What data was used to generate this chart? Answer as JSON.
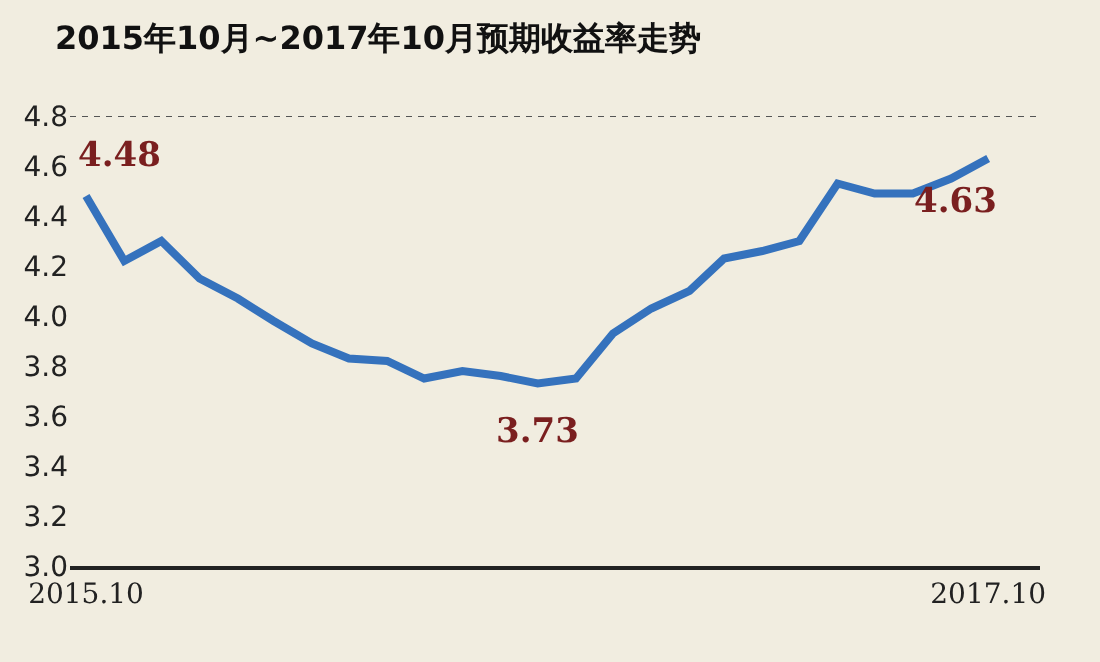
{
  "chart_data": {
    "type": "line",
    "title": "2015年10月~2017年10月预期收益率走势",
    "x": [
      "2015-10",
      "2015-11",
      "2015-12",
      "2016-01",
      "2016-02",
      "2016-03",
      "2016-04",
      "2016-05",
      "2016-06",
      "2016-07",
      "2016-08",
      "2016-09",
      "2016-10",
      "2016-11",
      "2016-12",
      "2017-01",
      "2017-02",
      "2017-03",
      "2017-04",
      "2017-05",
      "2017-06",
      "2017-07",
      "2017-08",
      "2017-09",
      "2017-10"
    ],
    "series": [
      {
        "color": "#3572bd",
        "values": [
          4.48,
          4.22,
          4.3,
          4.15,
          4.07,
          3.98,
          3.89,
          3.83,
          3.82,
          3.75,
          3.78,
          3.76,
          3.73,
          3.75,
          3.93,
          4.03,
          4.1,
          4.23,
          4.26,
          4.3,
          4.53,
          4.49,
          4.49,
          4.55,
          4.63
        ]
      }
    ],
    "annotations": [
      {
        "text": "4.48",
        "x": "2015-10",
        "y": 4.48
      },
      {
        "text": "3.73",
        "x": "2016-10",
        "y": 3.73
      },
      {
        "text": "4.63",
        "x": "2017-10",
        "y": 4.63
      }
    ],
    "xlim": [
      "2015-09-18",
      "2017-11-12"
    ],
    "xticks": [
      {
        "value": "2015-10",
        "label": "2015.10"
      },
      {
        "value": "2017-10",
        "label": "2017.10"
      }
    ],
    "ylim": [
      3.0,
      4.8
    ],
    "yticks": [
      {
        "value": 3.0,
        "label": "3.0"
      },
      {
        "value": 3.2,
        "label": "3.2"
      },
      {
        "value": 3.4,
        "label": "3.4"
      },
      {
        "value": 3.6,
        "label": "3.6"
      },
      {
        "value": 3.8,
        "label": "3.8"
      },
      {
        "value": 4.0,
        "label": "4.0"
      },
      {
        "value": 4.2,
        "label": "4.2"
      },
      {
        "value": 4.4,
        "label": "4.4"
      },
      {
        "value": 4.6,
        "label": "4.6"
      },
      {
        "value": 4.8,
        "label": "4.8"
      }
    ],
    "ref_lines": [
      {
        "axis": "y",
        "value": 4.8,
        "label": null,
        "color": "#555555",
        "line_style": "dotted"
      }
    ],
    "grid": false,
    "legend": false,
    "marker": "none",
    "line_style": "solid"
  }
}
